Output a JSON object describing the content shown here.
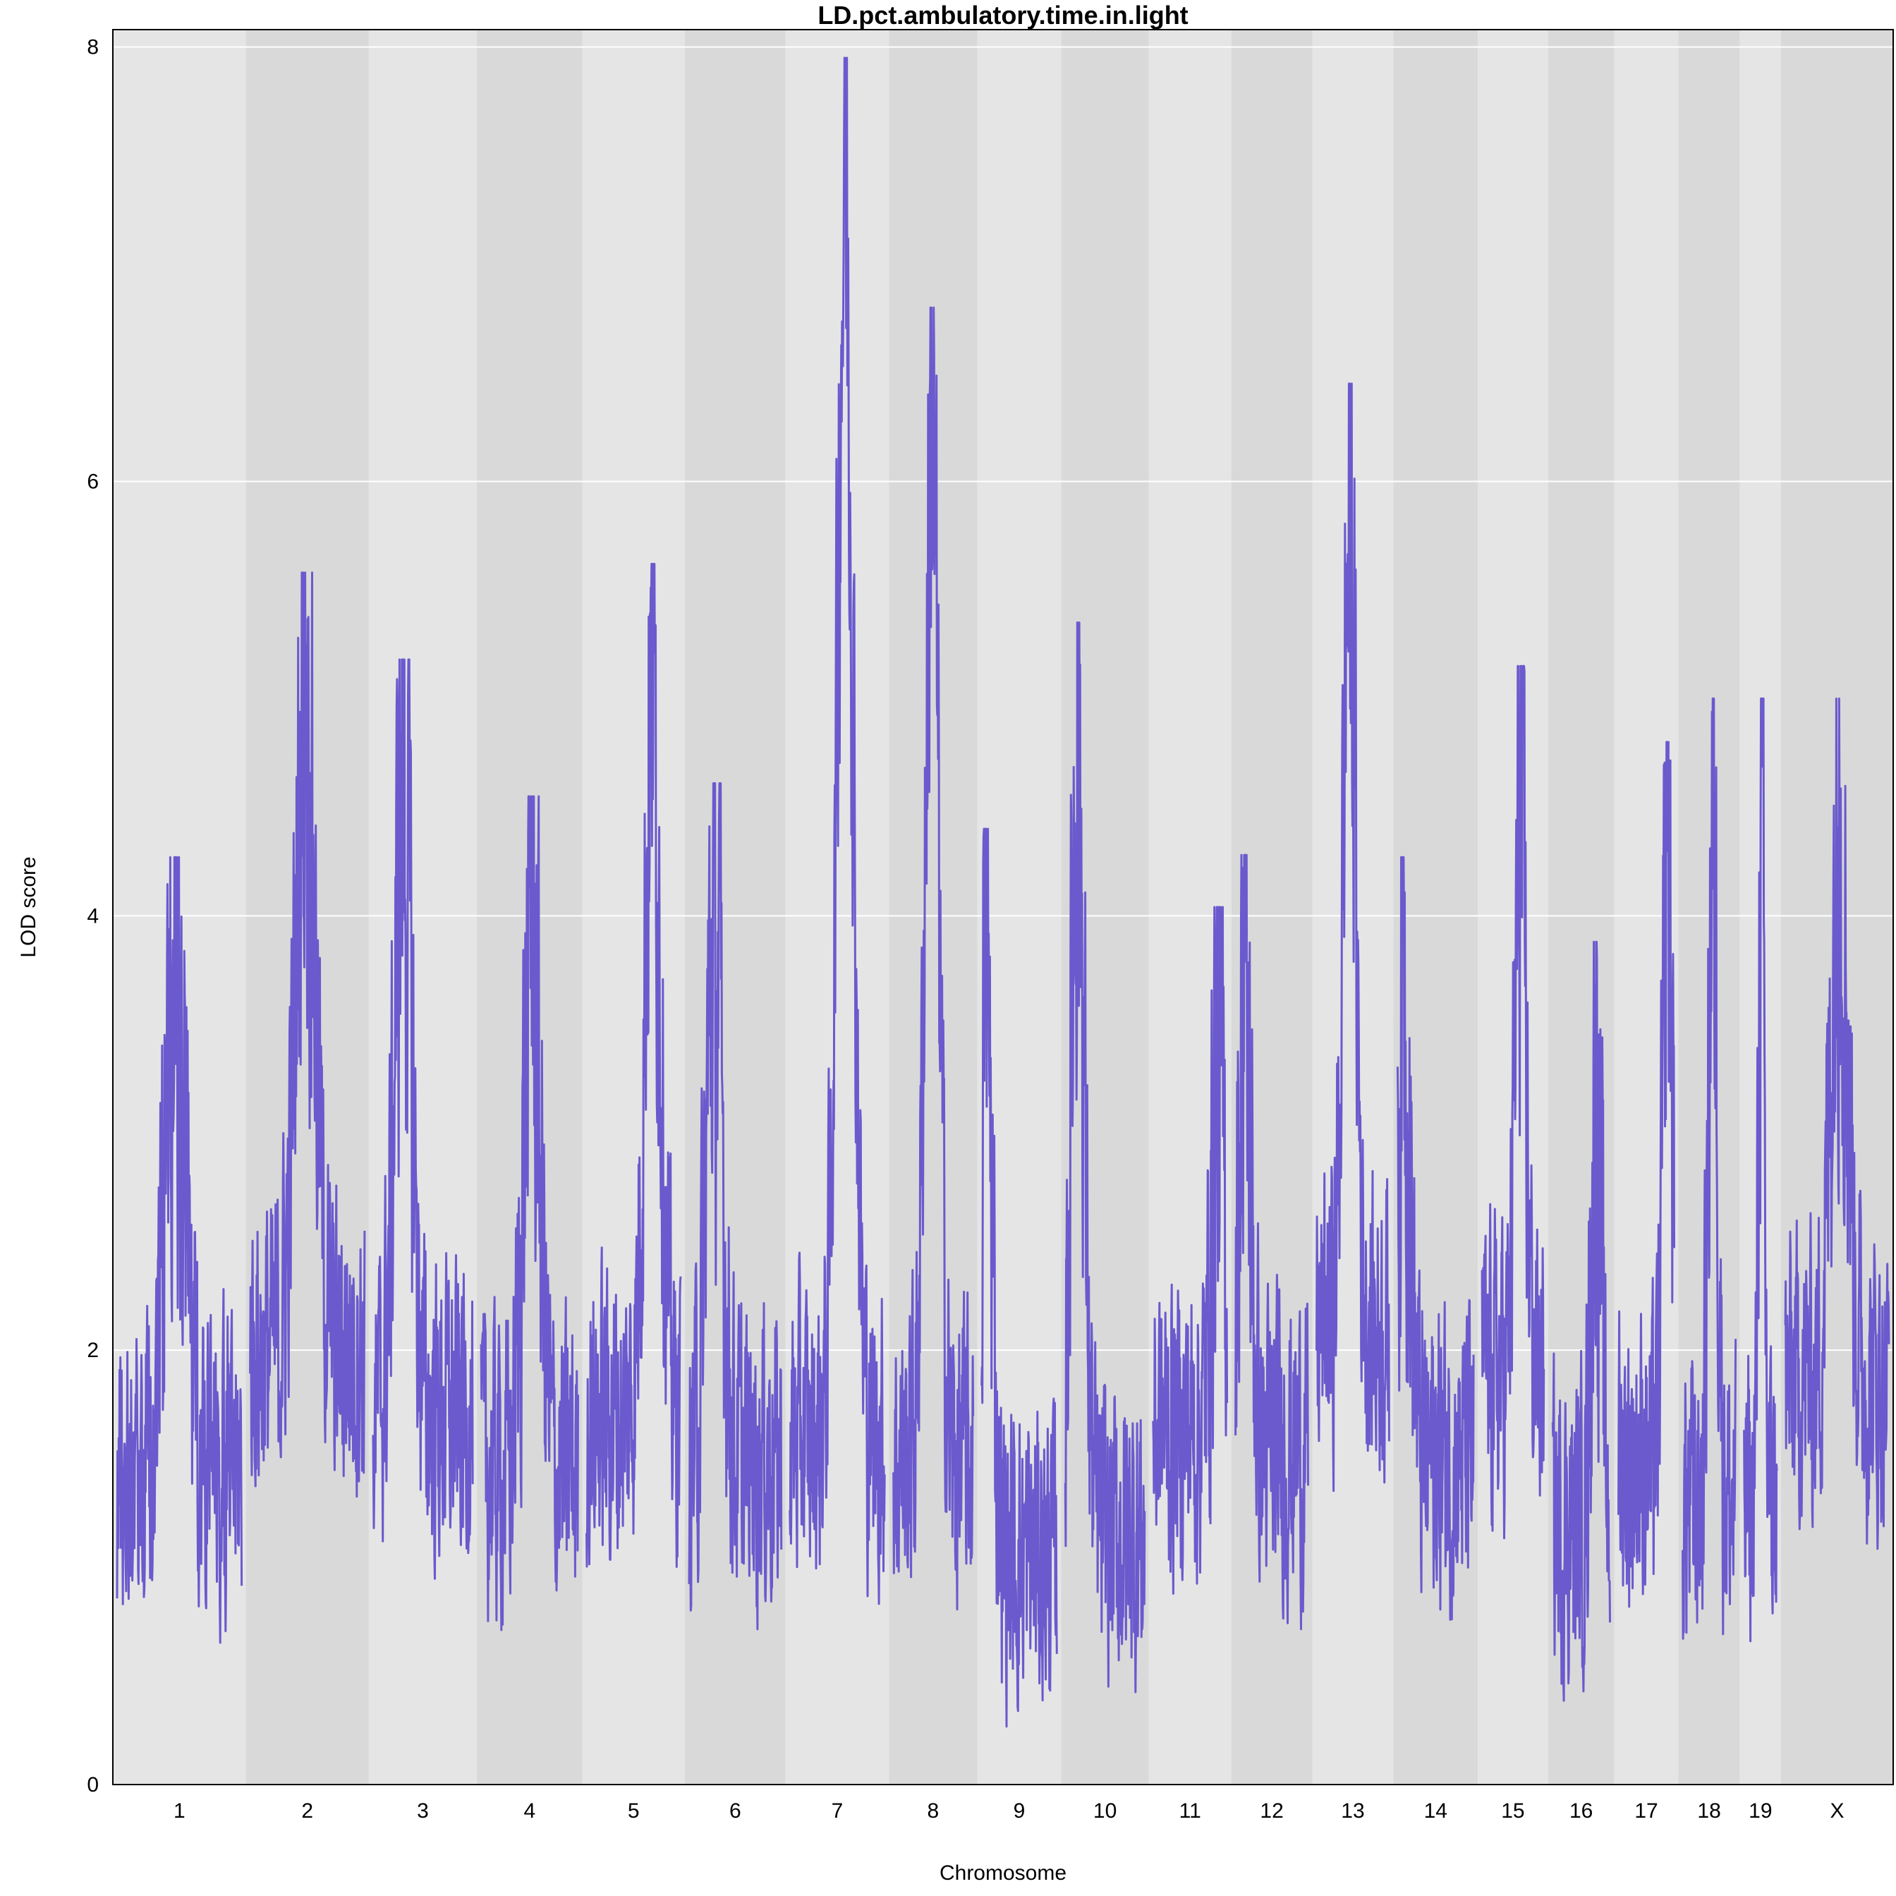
{
  "chart_data": {
    "type": "line",
    "title": "LD.pct.ambulatory.time.in.light",
    "xlabel": "Chromosome",
    "ylabel": "LOD score",
    "ylim": [
      0,
      8.08
    ],
    "yticks": [
      0,
      2,
      4,
      6,
      8
    ],
    "grid": true,
    "line_color": "#6A5ACD",
    "band_colors": [
      "#E5E5E5",
      "#D9D9D9"
    ],
    "chromosomes": [
      {
        "name": "1",
        "length": 197,
        "peak": 4.27,
        "peak_pos": 0.46,
        "base": 1.45
      },
      {
        "name": "2",
        "length": 182,
        "peak": 5.58,
        "peak_pos": 0.48,
        "base": 2.0
      },
      {
        "name": "3",
        "length": 160,
        "peak": 5.18,
        "peak_pos": 0.3,
        "base": 1.7
      },
      {
        "name": "4",
        "length": 156,
        "peak": 4.55,
        "peak_pos": 0.52,
        "base": 1.45
      },
      {
        "name": "5",
        "length": 152,
        "peak": 5.62,
        "peak_pos": 0.7,
        "base": 1.7
      },
      {
        "name": "6",
        "length": 149,
        "peak": 4.61,
        "peak_pos": 0.27,
        "base": 1.5
      },
      {
        "name": "7",
        "length": 153,
        "peak": 7.95,
        "peak_pos": 0.58,
        "base": 1.6
      },
      {
        "name": "8",
        "length": 131,
        "peak": 6.8,
        "peak_pos": 0.48,
        "base": 1.5
      },
      {
        "name": "9",
        "length": 124,
        "peak": 4.4,
        "peak_pos": 0.05,
        "base": 1.05
      },
      {
        "name": "10",
        "length": 130,
        "peak": 5.35,
        "peak_pos": 0.15,
        "base": 1.15
      },
      {
        "name": "11",
        "length": 122,
        "peak": 4.04,
        "peak_pos": 0.88,
        "base": 1.65
      },
      {
        "name": "12",
        "length": 120,
        "peak": 4.28,
        "peak_pos": 0.12,
        "base": 1.55
      },
      {
        "name": "13",
        "length": 120,
        "peak": 6.45,
        "peak_pos": 0.45,
        "base": 2.1
      },
      {
        "name": "14",
        "length": 125,
        "peak": 4.27,
        "peak_pos": 0.08,
        "base": 1.5
      },
      {
        "name": "15",
        "length": 104,
        "peak": 5.15,
        "peak_pos": 0.62,
        "base": 1.9
      },
      {
        "name": "16",
        "length": 98,
        "peak": 3.88,
        "peak_pos": 0.76,
        "base": 1.2
      },
      {
        "name": "17",
        "length": 95,
        "peak": 4.8,
        "peak_pos": 0.88,
        "base": 1.5
      },
      {
        "name": "18",
        "length": 91,
        "peak": 5.0,
        "peak_pos": 0.57,
        "base": 1.3
      },
      {
        "name": "19",
        "length": 61,
        "peak": 5.0,
        "peak_pos": 0.52,
        "base": 1.3
      },
      {
        "name": "X",
        "length": 166,
        "peak": 5.0,
        "peak_pos": 0.52,
        "base": 1.85
      }
    ]
  }
}
